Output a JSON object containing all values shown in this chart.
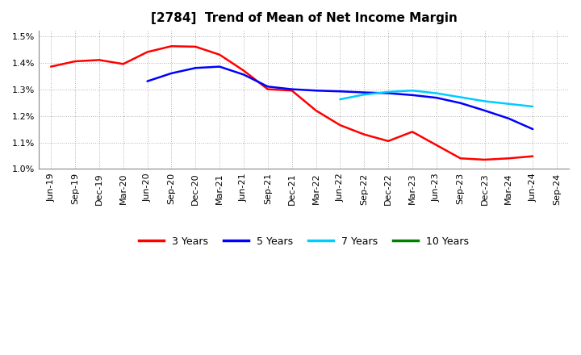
{
  "title": "[2784]  Trend of Mean of Net Income Margin",
  "x_labels": [
    "Jun-19",
    "Sep-19",
    "Dec-19",
    "Mar-20",
    "Jun-20",
    "Sep-20",
    "Dec-20",
    "Mar-21",
    "Jun-21",
    "Sep-21",
    "Dec-21",
    "Mar-22",
    "Jun-22",
    "Sep-22",
    "Dec-22",
    "Mar-23",
    "Jun-23",
    "Sep-23",
    "Dec-23",
    "Mar-24",
    "Jun-24",
    "Sep-24"
  ],
  "y3": [
    1.385,
    1.405,
    1.41,
    1.395,
    1.44,
    1.462,
    1.46,
    1.43,
    1.37,
    1.3,
    1.295,
    1.22,
    1.165,
    1.13,
    1.105,
    1.14,
    1.09,
    1.04,
    1.035,
    1.04,
    1.048,
    null
  ],
  "y5": [
    null,
    null,
    null,
    null,
    1.33,
    1.36,
    1.38,
    1.385,
    1.355,
    1.31,
    1.3,
    1.295,
    1.292,
    1.288,
    1.285,
    1.278,
    1.268,
    1.248,
    1.22,
    1.19,
    1.15,
    null
  ],
  "y7": [
    null,
    null,
    null,
    null,
    null,
    null,
    null,
    null,
    null,
    null,
    null,
    null,
    1.262,
    1.28,
    1.29,
    1.295,
    1.285,
    1.27,
    1.255,
    1.245,
    1.235,
    null
  ],
  "y10": [],
  "color_3y": "#ff0000",
  "color_5y": "#0000ff",
  "color_7y": "#00ccff",
  "color_10y": "#008000",
  "ylim": [
    1.0,
    1.52
  ],
  "yticks": [
    1.0,
    1.1,
    1.2,
    1.3,
    1.4,
    1.5
  ],
  "ytick_labels": [
    "1.0%",
    "1.1%",
    "1.2%",
    "1.3%",
    "1.4%",
    "1.5%"
  ],
  "legend_labels": [
    "3 Years",
    "5 Years",
    "7 Years",
    "10 Years"
  ],
  "grid_color": "#aaaaaa",
  "background_color": "#ffffff",
  "title_fontsize": 11,
  "tick_fontsize": 8,
  "line_width": 1.8
}
